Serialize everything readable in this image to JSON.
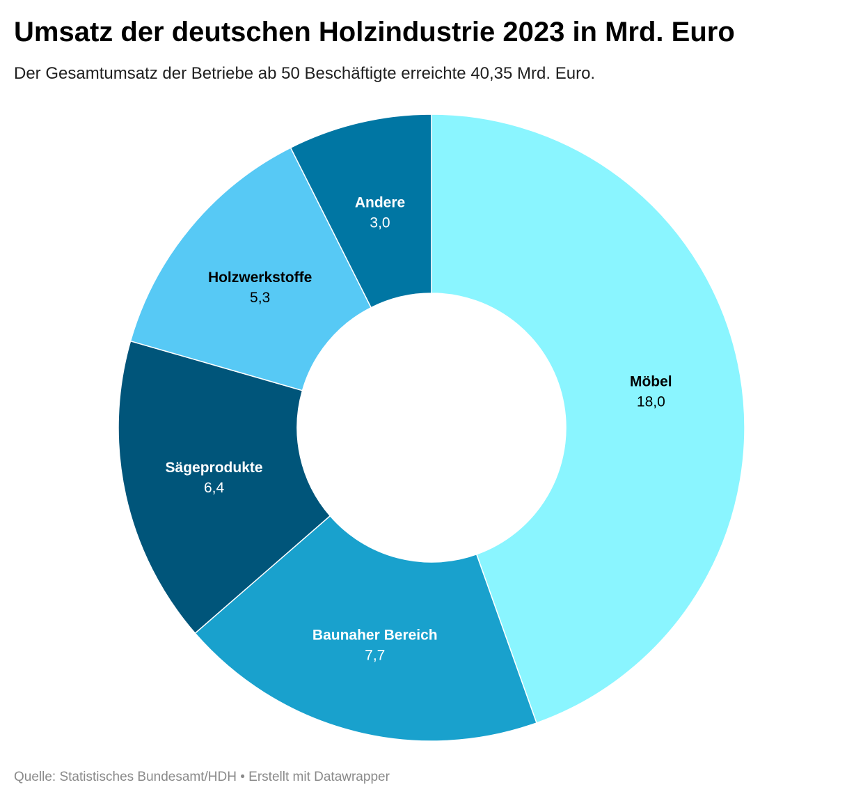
{
  "header": {
    "title": "Umsatz der deutschen Holzindustrie 2023 in Mrd. Euro",
    "subtitle": "Der Gesamtumsatz der Betriebe ab 50 Beschäftigte erreichte 40,35 Mrd. Euro."
  },
  "footer": {
    "source": "Quelle: Statistisches Bundesamt/HDH • Erstellt mit Datawrapper"
  },
  "chart_data": {
    "type": "pie",
    "variant": "donut",
    "title": "Umsatz der deutschen Holzindustrie 2023 in Mrd. Euro",
    "subtitle": "Der Gesamtumsatz der Betriebe ab 50 Beschäftigte erreichte 40,35 Mrd. Euro.",
    "slices": [
      {
        "label": "Möbel",
        "value": 18.0,
        "display": "18,0",
        "color": "#8af5ff",
        "text_color": "#000000"
      },
      {
        "label": "Baunaher Bereich",
        "value": 7.7,
        "display": "7,7",
        "color": "#19a1cd",
        "text_color": "#ffffff"
      },
      {
        "label": "Sägeprodukte",
        "value": 6.4,
        "display": "6,4",
        "color": "#00557a",
        "text_color": "#ffffff"
      },
      {
        "label": "Holzwerkstoffe",
        "value": 5.3,
        "display": "5,3",
        "color": "#57c9f5",
        "text_color": "#000000"
      },
      {
        "label": "Andere",
        "value": 3.0,
        "display": "3,0",
        "color": "#0076a3",
        "text_color": "#ffffff"
      }
    ],
    "start": "12 o'clock",
    "direction": "clockwise",
    "legend": "none"
  }
}
